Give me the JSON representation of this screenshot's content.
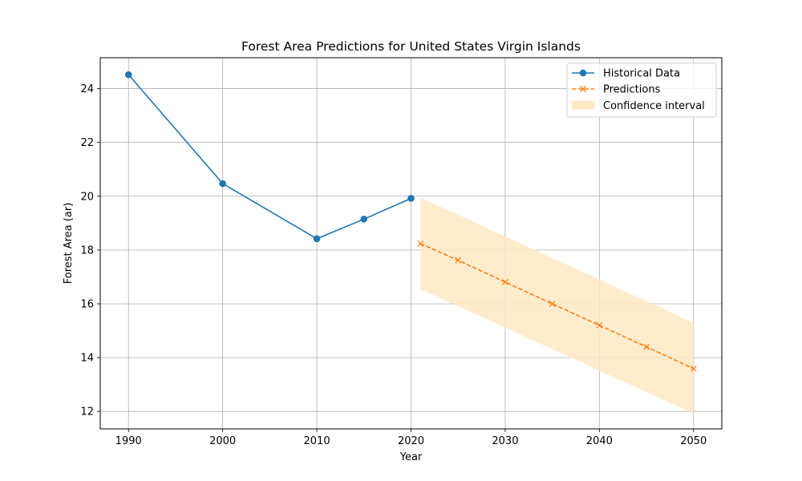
{
  "chart_data": {
    "type": "line",
    "title": "Forest Area Predictions for United States Virgin Islands",
    "xlabel": "Year",
    "ylabel": "Forest Area (ar)",
    "xlim": [
      1987,
      2053
    ],
    "ylim": [
      11.35,
      25.15
    ],
    "xticks": [
      1990,
      2000,
      2010,
      2020,
      2030,
      2040,
      2050
    ],
    "yticks": [
      12,
      14,
      16,
      18,
      20,
      22,
      24
    ],
    "grid": true,
    "legend_position": "top-right",
    "series": [
      {
        "name": "Historical Data",
        "style": "solid",
        "marker": "circle",
        "color": "#1f77b4",
        "x": [
          1990,
          2000,
          2010,
          2015,
          2020
        ],
        "y": [
          24.52,
          20.47,
          18.42,
          19.15,
          19.92
        ]
      },
      {
        "name": "Predictions",
        "style": "dashed",
        "marker": "x",
        "color": "#ff7f0e",
        "x": [
          2021,
          2025,
          2030,
          2035,
          2040,
          2045,
          2050
        ],
        "y": [
          18.24,
          17.62,
          16.81,
          16.0,
          15.2,
          14.4,
          13.59
        ]
      }
    ],
    "confidence_interval": {
      "name": "Confidence interval",
      "color": "#ffe9c4",
      "x": [
        2021,
        2050
      ],
      "upper": [
        19.95,
        15.3
      ],
      "lower": [
        16.55,
        11.92
      ]
    }
  }
}
